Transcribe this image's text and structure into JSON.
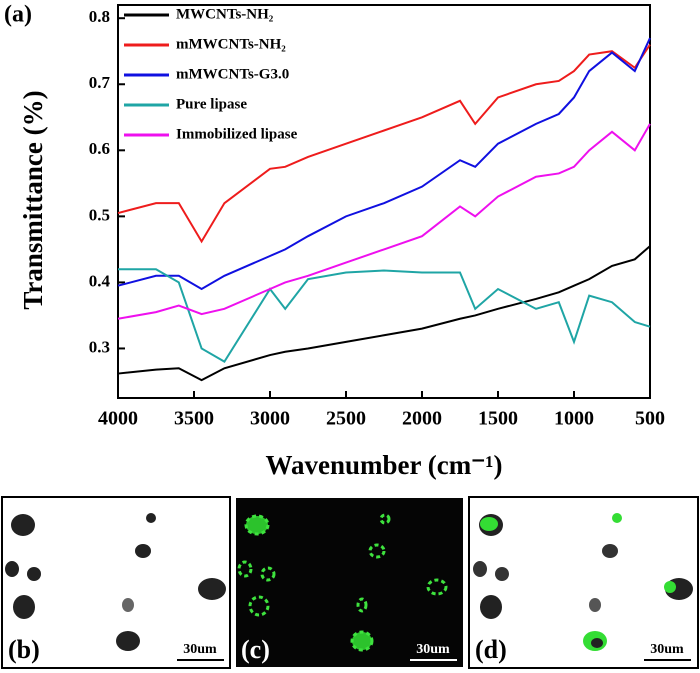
{
  "chart_data": {
    "type": "line",
    "panel_label": "(a)",
    "xlabel": "Wavenumber (cm⁻¹)",
    "ylabel": "Transmittance (%)",
    "x": [
      4000,
      3750,
      3600,
      3450,
      3300,
      3000,
      2900,
      2750,
      2500,
      2250,
      2000,
      1750,
      1650,
      1500,
      1250,
      1100,
      1000,
      900,
      750,
      600,
      500
    ],
    "series": [
      {
        "name": "MWCNTs-NH₂",
        "color": "#000000",
        "values": [
          0.262,
          0.268,
          0.27,
          0.252,
          0.27,
          0.29,
          0.295,
          0.3,
          0.31,
          0.32,
          0.33,
          0.345,
          0.35,
          0.36,
          0.375,
          0.385,
          0.395,
          0.405,
          0.425,
          0.435,
          0.455
        ]
      },
      {
        "name": "mMWCNTs-NH₂",
        "color": "#ee1c1c",
        "values": [
          0.505,
          0.52,
          0.52,
          0.462,
          0.52,
          0.572,
          0.575,
          0.59,
          0.61,
          0.63,
          0.65,
          0.675,
          0.64,
          0.68,
          0.7,
          0.705,
          0.72,
          0.745,
          0.75,
          0.725,
          0.76
        ]
      },
      {
        "name": "mMWCNTs-G3.0",
        "color": "#1010e0",
        "values": [
          0.395,
          0.41,
          0.41,
          0.39,
          0.41,
          0.44,
          0.45,
          0.47,
          0.5,
          0.52,
          0.545,
          0.585,
          0.575,
          0.61,
          0.64,
          0.655,
          0.68,
          0.72,
          0.748,
          0.72,
          0.77
        ]
      },
      {
        "name": "Pure lipase",
        "color": "#1fa5a5",
        "values": [
          0.42,
          0.42,
          0.4,
          0.3,
          0.28,
          0.39,
          0.36,
          0.405,
          0.415,
          0.418,
          0.415,
          0.415,
          0.36,
          0.39,
          0.36,
          0.37,
          0.31,
          0.38,
          0.37,
          0.34,
          0.333
        ]
      },
      {
        "name": "Immobilized lipase",
        "color": "#ee10ee",
        "values": [
          0.345,
          0.355,
          0.365,
          0.352,
          0.36,
          0.39,
          0.4,
          0.41,
          0.43,
          0.45,
          0.47,
          0.515,
          0.5,
          0.53,
          0.56,
          0.565,
          0.575,
          0.6,
          0.628,
          0.6,
          0.64
        ]
      }
    ],
    "xlim": [
      4000,
      500
    ],
    "xticks": [
      4000,
      3500,
      3000,
      2500,
      2000,
      1500,
      1000,
      500
    ],
    "ylim": [
      0.225,
      0.82
    ],
    "yticks": [
      0.3,
      0.4,
      0.5,
      0.6,
      0.7,
      0.8
    ],
    "legend": "upper left"
  },
  "panels": [
    {
      "label": "(b)",
      "scale": "30um"
    },
    {
      "label": "(c)",
      "scale": "30um"
    },
    {
      "label": "(d)",
      "scale": "30um"
    }
  ]
}
